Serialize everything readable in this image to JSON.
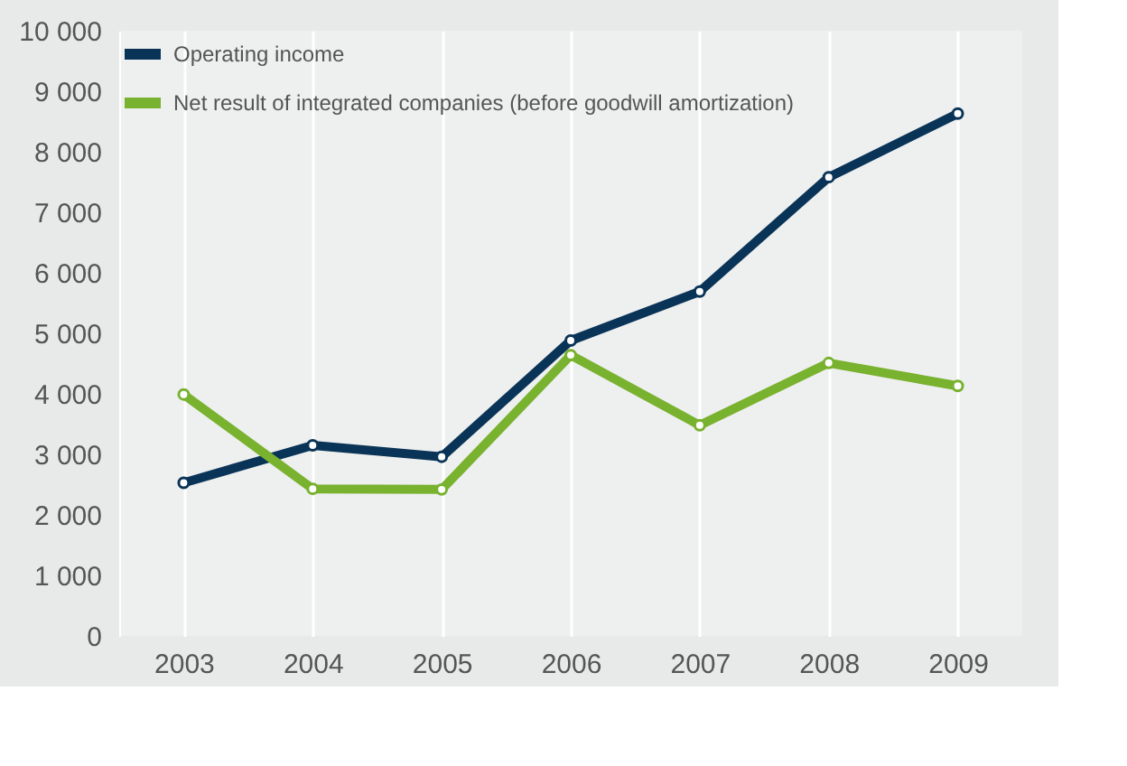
{
  "chart_data": {
    "type": "line",
    "categories": [
      "2003",
      "2004",
      "2005",
      "2006",
      "2007",
      "2008",
      "2009"
    ],
    "series": [
      {
        "name": "Operating income",
        "color": "#0a3457",
        "values": [
          2530,
          3150,
          2960,
          4880,
          5690,
          7580,
          8630
        ]
      },
      {
        "name": "Net result of integrated companies (before goodwill amortization)",
        "color": "#78b22e",
        "values": [
          3990,
          2430,
          2420,
          4640,
          3480,
          4510,
          4130
        ]
      }
    ],
    "ylim": [
      0,
      10000
    ],
    "yticks": [
      0,
      {
        "value": 1000,
        "label": "1 000"
      },
      {
        "value": 2000,
        "label": "2 000"
      },
      {
        "value": 3000,
        "label": "3 000"
      },
      {
        "value": 4000,
        "label": "4 000"
      },
      {
        "value": 5000,
        "label": "5 000"
      },
      {
        "value": 6000,
        "label": "6 000"
      },
      {
        "value": 7000,
        "label": "7 000"
      },
      {
        "value": 8000,
        "label": "8 000"
      },
      {
        "value": 9000,
        "label": "9 000"
      },
      {
        "value": 10000,
        "label": "10 000"
      }
    ],
    "grid": "x",
    "legend": "top left",
    "marker": "circle",
    "line_style": "solid"
  }
}
